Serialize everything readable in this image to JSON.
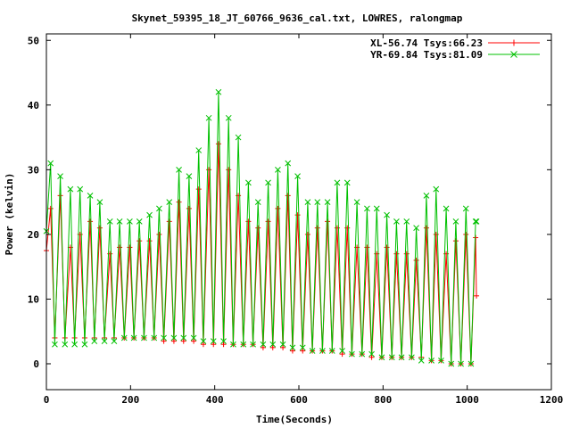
{
  "chart_data": {
    "type": "line",
    "title": "Skynet_59395_18_JT_60766_9636_cal.txt, LOWRES, ralongmap",
    "xlabel": "Time(Seconds)",
    "ylabel": "Power (kelvin)",
    "xlim": [
      0,
      1200
    ],
    "ylim": [
      -4,
      51
    ],
    "xticks": [
      0,
      200,
      400,
      600,
      800,
      1000,
      1200
    ],
    "yticks": [
      0,
      10,
      20,
      30,
      40,
      50
    ],
    "grid": false,
    "legend_position": "top-right",
    "sweep_period_s": 24,
    "series": [
      {
        "name": "XL-56.74 Tsys:66.23",
        "color": "#ff0000",
        "marker": "plus",
        "start": [
          0,
          17.5
        ],
        "end": [
          1022,
          10.5
        ],
        "peaks": [
          [
            10,
            24
          ],
          [
            33,
            26
          ],
          [
            57,
            18
          ],
          [
            80,
            20
          ],
          [
            104,
            22
          ],
          [
            127,
            21
          ],
          [
            151,
            17
          ],
          [
            174,
            18
          ],
          [
            198,
            18
          ],
          [
            221,
            19
          ],
          [
            245,
            19
          ],
          [
            268,
            20
          ],
          [
            292,
            22
          ],
          [
            315,
            25
          ],
          [
            339,
            24
          ],
          [
            362,
            27
          ],
          [
            386,
            30
          ],
          [
            409,
            34
          ],
          [
            433,
            30
          ],
          [
            456,
            26
          ],
          [
            480,
            22
          ],
          [
            503,
            21
          ],
          [
            527,
            22
          ],
          [
            550,
            24
          ],
          [
            574,
            26
          ],
          [
            597,
            23
          ],
          [
            621,
            20
          ],
          [
            644,
            21
          ],
          [
            668,
            22
          ],
          [
            691,
            21
          ],
          [
            715,
            21
          ],
          [
            738,
            18
          ],
          [
            762,
            18
          ],
          [
            785,
            17
          ],
          [
            809,
            18
          ],
          [
            832,
            17
          ],
          [
            856,
            17
          ],
          [
            879,
            16
          ],
          [
            903,
            21
          ],
          [
            926,
            20
          ],
          [
            950,
            17
          ],
          [
            973,
            19
          ],
          [
            997,
            20
          ],
          [
            1020,
            19.5
          ]
        ],
        "troughs": [
          [
            20,
            4
          ],
          [
            44,
            4
          ],
          [
            67,
            4
          ],
          [
            91,
            4
          ],
          [
            114,
            4
          ],
          [
            138,
            4
          ],
          [
            161,
            4
          ],
          [
            185,
            4
          ],
          [
            208,
            4
          ],
          [
            232,
            4
          ],
          [
            256,
            4
          ],
          [
            279,
            3.5
          ],
          [
            303,
            3.5
          ],
          [
            326,
            3.5
          ],
          [
            350,
            3.5
          ],
          [
            373,
            3
          ],
          [
            397,
            3
          ],
          [
            421,
            3
          ],
          [
            444,
            3
          ],
          [
            468,
            3
          ],
          [
            491,
            3
          ],
          [
            515,
            2.5
          ],
          [
            538,
            2.5
          ],
          [
            562,
            2.5
          ],
          [
            585,
            2
          ],
          [
            609,
            2
          ],
          [
            632,
            2
          ],
          [
            656,
            2
          ],
          [
            679,
            2
          ],
          [
            703,
            1.5
          ],
          [
            726,
            1.5
          ],
          [
            750,
            1.5
          ],
          [
            773,
            1
          ],
          [
            797,
            1
          ],
          [
            821,
            1
          ],
          [
            844,
            1
          ],
          [
            868,
            1
          ],
          [
            891,
            1
          ],
          [
            915,
            0.5
          ],
          [
            938,
            0.5
          ],
          [
            962,
            0
          ],
          [
            985,
            0
          ],
          [
            1009,
            0
          ]
        ]
      },
      {
        "name": "YR-69.84 Tsys:81.09",
        "color": "#00c000",
        "marker": "cross",
        "start": [
          0,
          20.5
        ],
        "end": [
          1022,
          22
        ],
        "peaks": [
          [
            10,
            31
          ],
          [
            33,
            29
          ],
          [
            57,
            27
          ],
          [
            80,
            27
          ],
          [
            104,
            26
          ],
          [
            127,
            25
          ],
          [
            151,
            22
          ],
          [
            174,
            22
          ],
          [
            198,
            22
          ],
          [
            221,
            22
          ],
          [
            245,
            23
          ],
          [
            268,
            24
          ],
          [
            292,
            25
          ],
          [
            315,
            30
          ],
          [
            339,
            29
          ],
          [
            362,
            33
          ],
          [
            386,
            38
          ],
          [
            409,
            42
          ],
          [
            433,
            38
          ],
          [
            456,
            35
          ],
          [
            480,
            28
          ],
          [
            503,
            25
          ],
          [
            527,
            28
          ],
          [
            550,
            30
          ],
          [
            574,
            31
          ],
          [
            597,
            29
          ],
          [
            621,
            25
          ],
          [
            644,
            25
          ],
          [
            668,
            25
          ],
          [
            691,
            28
          ],
          [
            715,
            28
          ],
          [
            738,
            25
          ],
          [
            762,
            24
          ],
          [
            785,
            24
          ],
          [
            809,
            23
          ],
          [
            832,
            22
          ],
          [
            856,
            22
          ],
          [
            879,
            21
          ],
          [
            903,
            26
          ],
          [
            926,
            27
          ],
          [
            950,
            24
          ],
          [
            973,
            22
          ],
          [
            997,
            24
          ],
          [
            1020,
            22
          ]
        ],
        "troughs": [
          [
            20,
            3
          ],
          [
            44,
            3
          ],
          [
            67,
            3
          ],
          [
            91,
            3
          ],
          [
            114,
            3.5
          ],
          [
            138,
            3.5
          ],
          [
            161,
            3.5
          ],
          [
            185,
            4
          ],
          [
            208,
            4
          ],
          [
            232,
            4
          ],
          [
            256,
            4
          ],
          [
            279,
            4
          ],
          [
            303,
            4
          ],
          [
            326,
            4
          ],
          [
            350,
            4
          ],
          [
            373,
            3.5
          ],
          [
            397,
            3.5
          ],
          [
            421,
            3.5
          ],
          [
            444,
            3
          ],
          [
            468,
            3
          ],
          [
            491,
            3
          ],
          [
            515,
            3
          ],
          [
            538,
            3
          ],
          [
            562,
            3
          ],
          [
            585,
            2.5
          ],
          [
            609,
            2.5
          ],
          [
            632,
            2
          ],
          [
            656,
            2
          ],
          [
            679,
            2
          ],
          [
            703,
            2
          ],
          [
            726,
            1.5
          ],
          [
            750,
            1.5
          ],
          [
            773,
            1.5
          ],
          [
            797,
            1
          ],
          [
            821,
            1
          ],
          [
            844,
            1
          ],
          [
            868,
            1
          ],
          [
            891,
            0.5
          ],
          [
            915,
            0.5
          ],
          [
            938,
            0.5
          ],
          [
            962,
            0
          ],
          [
            985,
            0
          ],
          [
            1009,
            0
          ]
        ]
      }
    ]
  }
}
